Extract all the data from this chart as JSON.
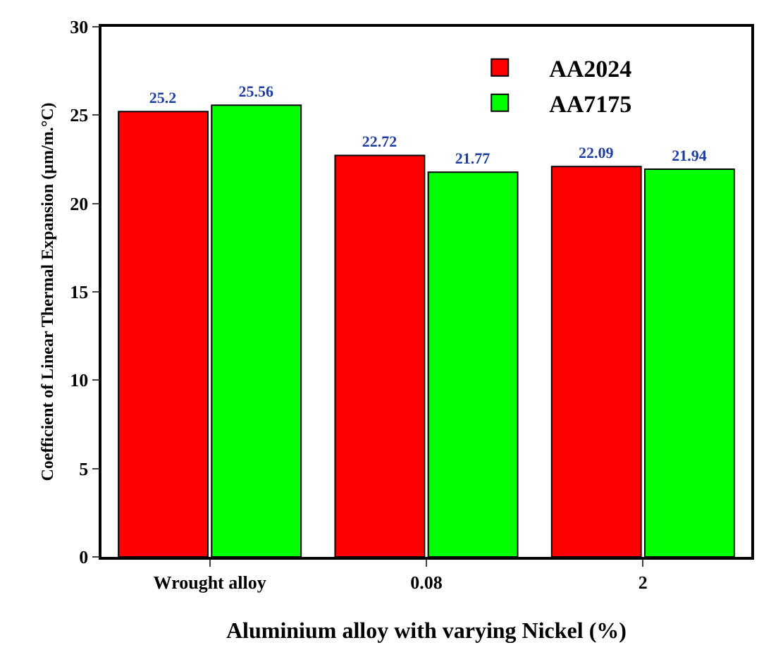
{
  "chart_data": {
    "type": "bar",
    "xlabel": "Aluminium alloy with varying Nickel (%)",
    "ylabel": "Coefficient of Linear Thermal Expansion (µm/m.°C)",
    "categories": [
      "Wrought alloy",
      "0.08",
      "2"
    ],
    "series": [
      {
        "name": "AA2024",
        "color": "#ff0000",
        "values": [
          25.2,
          22.72,
          22.09
        ]
      },
      {
        "name": "AA7175",
        "color": "#00ff00",
        "values": [
          25.56,
          21.77,
          21.94
        ]
      }
    ],
    "ylim": [
      0,
      30
    ],
    "yticks": [
      0,
      5,
      10,
      15,
      20,
      25,
      30
    ],
    "grid": false,
    "legend": "top right",
    "data_labels": true
  }
}
